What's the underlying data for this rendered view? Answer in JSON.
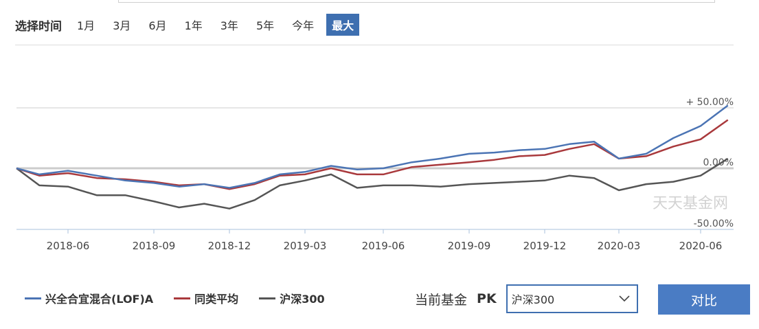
{
  "range_selector": {
    "title": "选择时间",
    "options": [
      "1月",
      "3月",
      "6月",
      "1年",
      "3年",
      "5年",
      "今年",
      "最大"
    ],
    "active": "最大"
  },
  "chart_data": {
    "type": "line",
    "x_ticks": [
      "2018-06",
      "2018-09",
      "2018-12",
      "2019-03",
      "2019-06",
      "2019-09",
      "2019-12",
      "2020-03",
      "2020-06"
    ],
    "y_tick_labels": [
      "+ 50.00%",
      "0.00%",
      "-50.00%"
    ],
    "ylim": [
      -50,
      50
    ],
    "watermark": "天天基金网",
    "series": [
      {
        "name": "兴全合宜混合(LOF)A",
        "color": "#4b74b4",
        "x": [
          "2018-04",
          "2018-05",
          "2018-06",
          "2018-07",
          "2018-08",
          "2018-09",
          "2018-10",
          "2018-11",
          "2018-12",
          "2019-01",
          "2019-02",
          "2019-03",
          "2019-04",
          "2019-05",
          "2019-06",
          "2019-07",
          "2019-08",
          "2019-09",
          "2019-10",
          "2019-11",
          "2019-12",
          "2020-01",
          "2020-02",
          "2020-03",
          "2020-04",
          "2020-05",
          "2020-06",
          "2020-07"
        ],
        "values": [
          0,
          -5,
          -2,
          -6,
          -10,
          -12,
          -15,
          -13,
          -16,
          -12,
          -5,
          -3,
          2,
          -1,
          0,
          5,
          8,
          12,
          13,
          15,
          16,
          20,
          22,
          8,
          12,
          25,
          35,
          52
        ]
      },
      {
        "name": "同类平均",
        "color": "#a9393c",
        "x": [
          "2018-04",
          "2018-05",
          "2018-06",
          "2018-07",
          "2018-08",
          "2018-09",
          "2018-10",
          "2018-11",
          "2018-12",
          "2019-01",
          "2019-02",
          "2019-03",
          "2019-04",
          "2019-05",
          "2019-06",
          "2019-07",
          "2019-08",
          "2019-09",
          "2019-10",
          "2019-11",
          "2019-12",
          "2020-01",
          "2020-02",
          "2020-03",
          "2020-04",
          "2020-05",
          "2020-06",
          "2020-07"
        ],
        "values": [
          0,
          -6,
          -4,
          -8,
          -9,
          -11,
          -14,
          -13,
          -17,
          -13,
          -6,
          -5,
          0,
          -5,
          -5,
          1,
          3,
          5,
          7,
          10,
          11,
          16,
          20,
          8,
          10,
          18,
          24,
          40
        ]
      },
      {
        "name": "沪深300",
        "color": "#555555",
        "x": [
          "2018-04",
          "2018-05",
          "2018-06",
          "2018-07",
          "2018-08",
          "2018-09",
          "2018-10",
          "2018-11",
          "2018-12",
          "2019-01",
          "2019-02",
          "2019-03",
          "2019-04",
          "2019-05",
          "2019-06",
          "2019-07",
          "2019-08",
          "2019-09",
          "2019-10",
          "2019-11",
          "2019-12",
          "2020-01",
          "2020-02",
          "2020-03",
          "2020-04",
          "2020-05",
          "2020-06",
          "2020-07"
        ],
        "values": [
          0,
          -14,
          -15,
          -22,
          -22,
          -27,
          -32,
          -29,
          -33,
          -26,
          -14,
          -10,
          -5,
          -16,
          -14,
          -14,
          -15,
          -13,
          -12,
          -11,
          -10,
          -6,
          -8,
          -18,
          -13,
          -11,
          -6,
          8
        ]
      }
    ]
  },
  "pk": {
    "label": "当前基金",
    "pk_text": "PK",
    "selected": "沪深300",
    "compare_label": "对比"
  }
}
